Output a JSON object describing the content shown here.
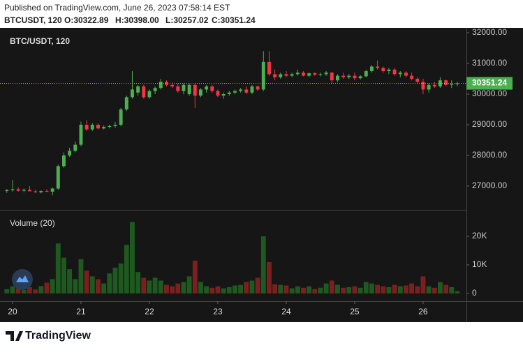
{
  "header": {
    "published": "Published on TradingView.com, June 26, 2023 07:58:14 EST",
    "symbol": "BTCUSDT, 120",
    "o": "O:30322.89",
    "h": "H:30398.00",
    "l": "L:30257.02",
    "c": "C:30351.24"
  },
  "footer": {
    "brand": "TradingView"
  },
  "chart_data": {
    "type": "candlestick",
    "title": "BTC/USDT, 120",
    "volume_title": "Volume (20)",
    "up_color": "#4caf50",
    "down_color": "#f23645",
    "up_volume_color": "#1e5a1f",
    "down_volume_color": "#7c1f1f",
    "last_line_color": "#c8c83a",
    "xlim": [
      -1.2,
      80.6
    ],
    "xticks": [
      {
        "value": 1,
        "label": "20"
      },
      {
        "value": 13,
        "label": "21"
      },
      {
        "value": 25,
        "label": "22"
      },
      {
        "value": 37,
        "label": "23"
      },
      {
        "value": 49,
        "label": "24"
      },
      {
        "value": 61,
        "label": "25"
      },
      {
        "value": 73,
        "label": "26"
      }
    ],
    "ylim": [
      26227,
      32160
    ],
    "yticks": [
      {
        "value": 27000,
        "label": "27000.00"
      },
      {
        "value": 28000,
        "label": "28000.00"
      },
      {
        "value": 29000,
        "label": "29000.00"
      },
      {
        "value": 30000,
        "label": "30000.00"
      },
      {
        "value": 31000,
        "label": "31000.00"
      },
      {
        "value": 32000,
        "label": "32000.00"
      }
    ],
    "y2lim": [
      -2683,
      29024
    ],
    "y2ticks": [
      0,
      {
        "value": 10000,
        "label": "10K"
      },
      {
        "value": 20000,
        "label": "20K"
      }
    ],
    "open": [
      26840,
      26870,
      26900,
      26850,
      26880,
      26830,
      26800,
      26840,
      26820,
      26920,
      27650,
      28000,
      28150,
      28350,
      29000,
      28850,
      29000,
      28880,
      28930,
      28960,
      29000,
      29500,
      29900,
      30050,
      30250,
      29900,
      30100,
      30200,
      30400,
      30300,
      30250,
      30100,
      30000,
      30300,
      29950,
      30150,
      30250,
      30100,
      29950,
      30000,
      30050,
      30100,
      30150,
      30050,
      30250,
      30150,
      31050,
      30650,
      30550,
      30650,
      30600,
      30650,
      30700,
      30600,
      30680,
      30630,
      30650,
      30700,
      30450,
      30600,
      30550,
      30600,
      30520,
      30580,
      30750,
      30900,
      30850,
      30750,
      30800,
      30650,
      30700,
      30600,
      30500,
      30400,
      30150,
      30300,
      30250,
      30450,
      30300,
      30322.89
    ],
    "high": [
      26900,
      27200,
      26960,
      26920,
      27000,
      26880,
      26860,
      26900,
      26950,
      27700,
      28100,
      28250,
      28450,
      29100,
      29150,
      29050,
      29050,
      28980,
      29000,
      29100,
      29550,
      29950,
      30750,
      30300,
      30300,
      30150,
      30250,
      30500,
      30450,
      30380,
      30350,
      30350,
      30350,
      30350,
      30200,
      30300,
      30300,
      30150,
      30050,
      30100,
      30150,
      30200,
      30250,
      30300,
      30280,
      31400,
      31400,
      30800,
      30700,
      30750,
      30700,
      30800,
      30750,
      30700,
      30720,
      30700,
      30750,
      30720,
      30650,
      30700,
      30650,
      30700,
      30620,
      30800,
      30950,
      31100,
      30900,
      30850,
      30850,
      30750,
      30750,
      30700,
      30550,
      30500,
      30350,
      30400,
      30550,
      30480,
      30450,
      30398.0
    ],
    "low": [
      26780,
      26820,
      26820,
      26800,
      26840,
      26780,
      26760,
      26800,
      26700,
      26880,
      27600,
      27950,
      28100,
      28300,
      28800,
      28800,
      28850,
      28850,
      28880,
      28900,
      28950,
      29450,
      29850,
      29950,
      29850,
      29850,
      30000,
      30150,
      30250,
      30200,
      30050,
      30000,
      29950,
      29550,
      29900,
      30050,
      30050,
      29900,
      29850,
      29950,
      30000,
      30050,
      30000,
      30000,
      30100,
      30100,
      30600,
      30450,
      30500,
      30550,
      30550,
      30600,
      30580,
      30550,
      30600,
      30580,
      30600,
      30350,
      30400,
      30500,
      30500,
      30450,
      30480,
      30550,
      30700,
      30800,
      30700,
      30650,
      30600,
      30550,
      30550,
      30450,
      30350,
      30000,
      30050,
      30200,
      30200,
      30250,
      30200,
      30257.02
    ],
    "close": [
      26870,
      26900,
      26850,
      26880,
      26830,
      26800,
      26840,
      26820,
      26920,
      27650,
      28000,
      28150,
      28350,
      29000,
      28850,
      29000,
      28880,
      28930,
      28960,
      29000,
      29500,
      29900,
      30150,
      30250,
      29900,
      30100,
      30200,
      30400,
      30300,
      30250,
      30100,
      30300,
      30300,
      29950,
      30150,
      30250,
      30100,
      29950,
      30000,
      30050,
      30100,
      30150,
      30050,
      30250,
      30150,
      31050,
      30650,
      30550,
      30650,
      30600,
      30650,
      30700,
      30600,
      30680,
      30630,
      30650,
      30700,
      30450,
      30600,
      30550,
      30600,
      30520,
      30580,
      30750,
      30900,
      30850,
      30750,
      30800,
      30650,
      30700,
      30600,
      30500,
      30400,
      30150,
      30300,
      30250,
      30450,
      30300,
      30322.89,
      30351.24
    ],
    "volume": [
      1500,
      2500,
      1800,
      1200,
      2200,
      1400,
      2600,
      3800,
      5000,
      17500,
      12500,
      8500,
      5000,
      12000,
      8000,
      6000,
      5000,
      3500,
      7000,
      9000,
      10500,
      17000,
      25000,
      7500,
      5500,
      4500,
      5500,
      4500,
      3000,
      2500,
      3500,
      4000,
      6000,
      11500,
      4000,
      2500,
      2000,
      2500,
      1800,
      2200,
      2800,
      3000,
      4000,
      4500,
      5500,
      20000,
      11000,
      3200,
      3000,
      2800,
      1800,
      2500,
      2000,
      2500,
      1500,
      2000,
      3500,
      4500,
      3000,
      2000,
      2200,
      2500,
      2000,
      4000,
      3500,
      3000,
      2500,
      2200,
      3000,
      2500,
      2800,
      3500,
      2500,
      6000,
      2500,
      2000,
      4000,
      3000,
      2200,
      800
    ]
  }
}
